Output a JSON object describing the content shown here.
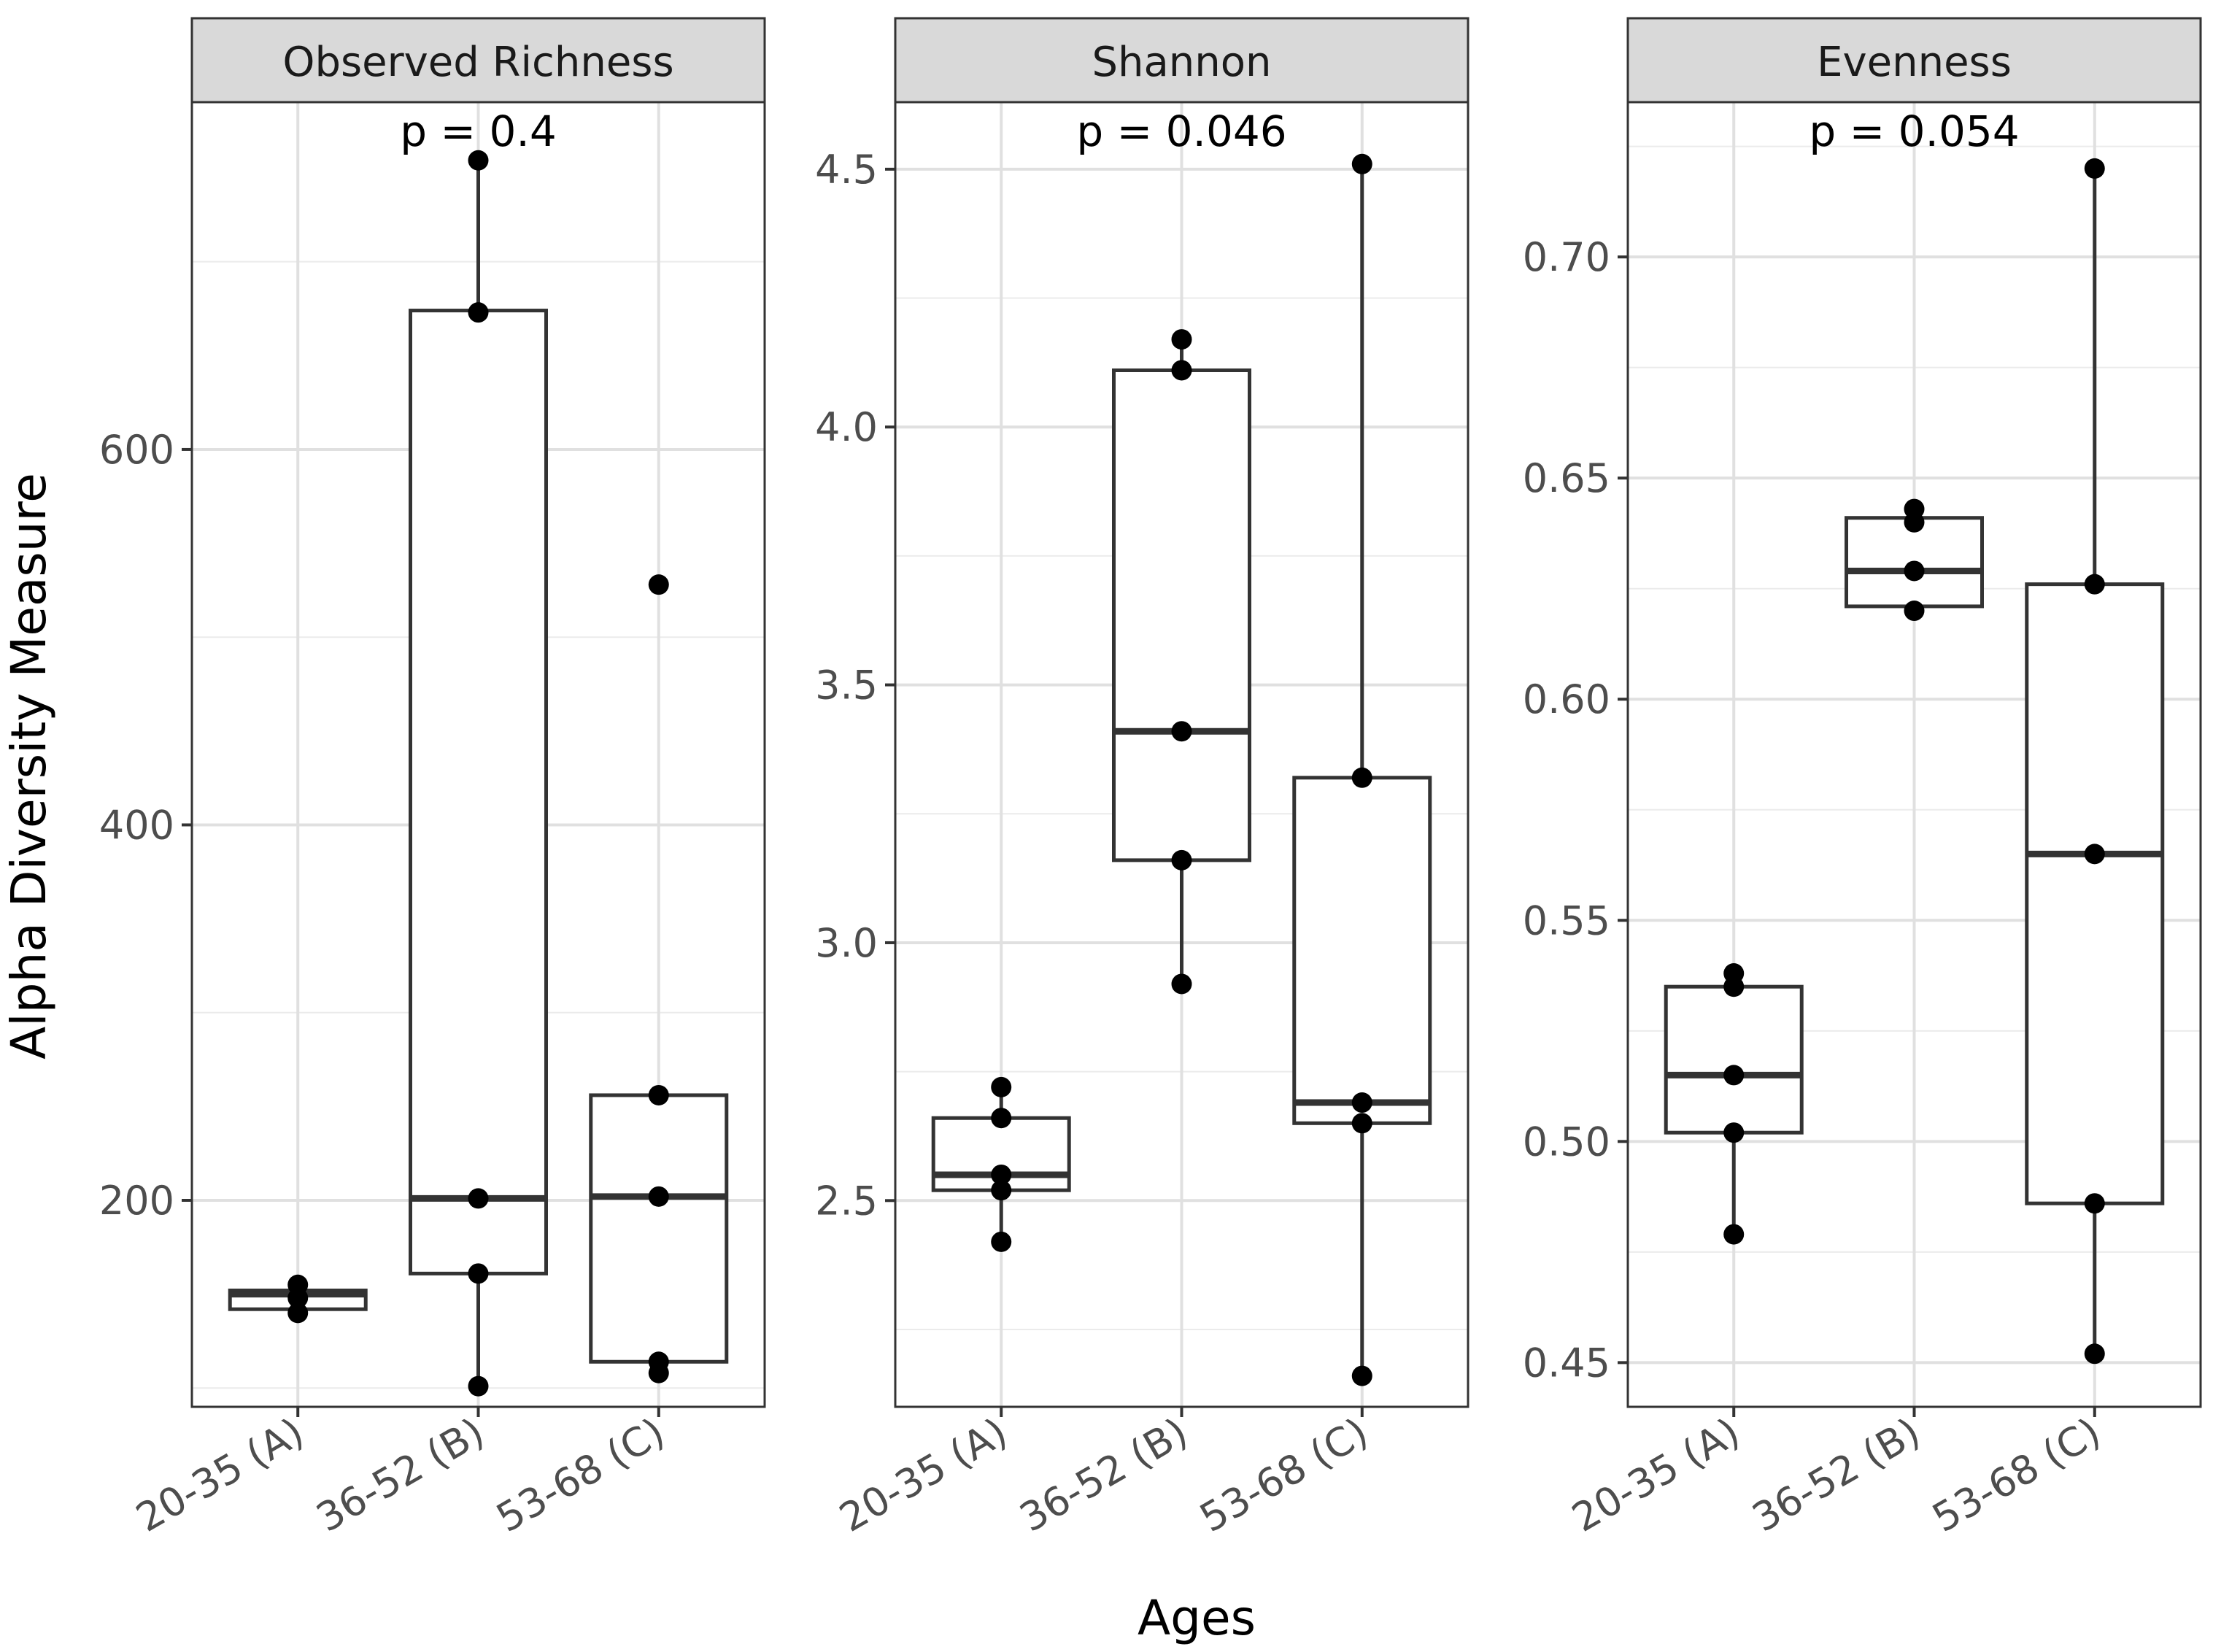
{
  "chart_data": {
    "type": "box",
    "ylabel": "Alpha Diversity Measure",
    "xlabel": "Ages",
    "categories": [
      "20-35 (A)",
      "36-52 (B)",
      "53-68 (C)"
    ],
    "panels": [
      {
        "title": "Observed Richness",
        "pvalue": "p = 0.4",
        "ylim": [
          90,
          785
        ],
        "yticks": [
          200,
          400,
          600
        ],
        "ytick_labels": [
          "200",
          "400",
          "600"
        ],
        "boxes": [
          {
            "q1": 142,
            "median": 150,
            "q3": 152,
            "lower": 142,
            "upper": 152
          },
          {
            "q1": 161,
            "median": 201,
            "q3": 674,
            "lower": 101,
            "upper": 754
          },
          {
            "q1": 114,
            "median": 202,
            "q3": 256,
            "lower": 114,
            "upper": 256
          }
        ],
        "points": [
          [
            155,
            148,
            140
          ],
          [
            754,
            673,
            201,
            161,
            101
          ],
          [
            528,
            256,
            202,
            114,
            108
          ]
        ]
      },
      {
        "title": "Shannon",
        "pvalue": "p = 0.046",
        "ylim": [
          2.1,
          4.63
        ],
        "yticks": [
          2.5,
          3.0,
          3.5,
          4.0,
          4.5
        ],
        "ytick_labels": [
          "2.5",
          "3.0",
          "3.5",
          "4.0",
          "4.5"
        ],
        "boxes": [
          {
            "q1": 2.52,
            "median": 2.55,
            "q3": 2.66,
            "lower": 2.42,
            "upper": 2.72
          },
          {
            "q1": 3.16,
            "median": 3.41,
            "q3": 4.11,
            "lower": 2.92,
            "upper": 4.17
          },
          {
            "q1": 2.65,
            "median": 2.69,
            "q3": 3.32,
            "lower": 2.16,
            "upper": 4.51
          }
        ],
        "points": [
          [
            2.72,
            2.66,
            2.55,
            2.52,
            2.42
          ],
          [
            4.17,
            4.11,
            3.41,
            3.16,
            2.92
          ],
          [
            4.51,
            3.32,
            2.69,
            2.65,
            2.16
          ]
        ]
      },
      {
        "title": "Evenness",
        "pvalue": "p = 0.054",
        "ylim": [
          0.44,
          0.735
        ],
        "yticks": [
          0.45,
          0.5,
          0.55,
          0.6,
          0.65,
          0.7
        ],
        "ytick_labels": [
          "0.45",
          "0.50",
          "0.55",
          "0.60",
          "0.65",
          "0.70"
        ],
        "boxes": [
          {
            "q1": 0.502,
            "median": 0.515,
            "q3": 0.535,
            "lower": 0.479,
            "upper": 0.538
          },
          {
            "q1": 0.621,
            "median": 0.629,
            "q3": 0.641,
            "lower": 0.621,
            "upper": 0.643
          },
          {
            "q1": 0.486,
            "median": 0.565,
            "q3": 0.626,
            "lower": 0.452,
            "upper": 0.72
          }
        ],
        "points": [
          [
            0.538,
            0.535,
            0.515,
            0.502,
            0.479
          ],
          [
            0.643,
            0.64,
            0.629,
            0.62
          ],
          [
            0.72,
            0.626,
            0.565,
            0.486,
            0.452
          ]
        ]
      }
    ]
  }
}
